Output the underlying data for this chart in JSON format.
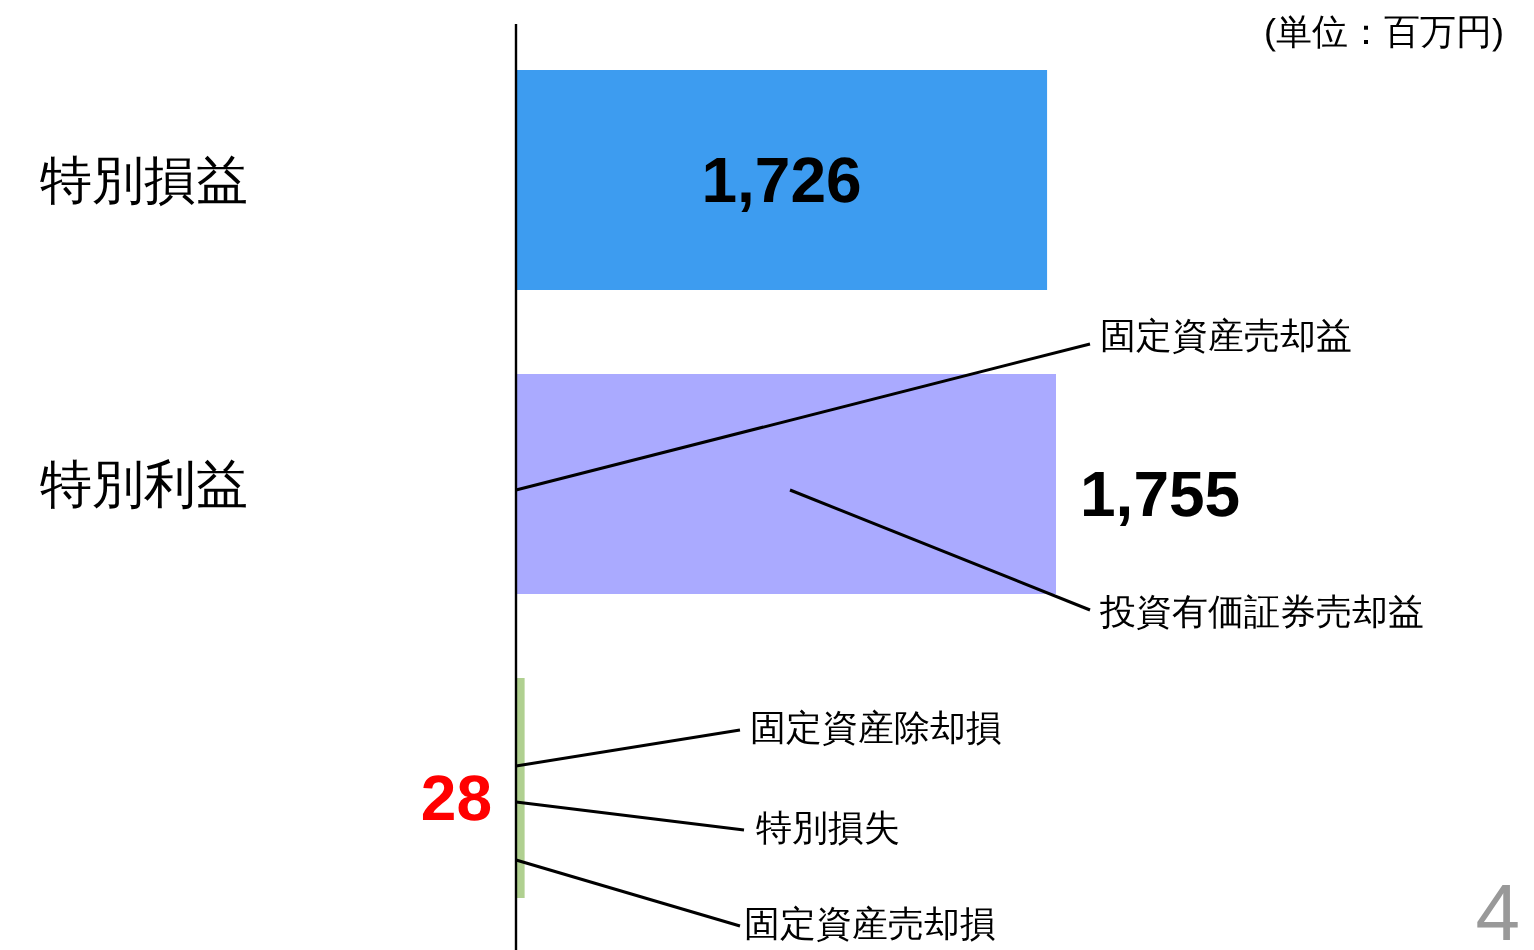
{
  "chart_data": {
    "type": "bar",
    "orientation": "horizontal",
    "categories": [
      "特別損益",
      "特別利益",
      null
    ],
    "values": [
      1726,
      1755,
      28
    ],
    "colors": [
      "#3d9cf0",
      "#aaaaff",
      "#b0d090"
    ],
    "value_labels": [
      "1,726",
      "1,755",
      "28"
    ],
    "annotations": [
      "(単位：百万円)",
      "固定資産売却益",
      "投資有価証券売却益",
      "固定資産除却損",
      "特別損失",
      "固定資産売却損",
      "4"
    ]
  }
}
